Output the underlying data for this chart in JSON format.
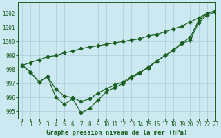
{
  "xlabel": "Graphe pression niveau de la mer (hPa)",
  "xlim": [
    -0.5,
    23
  ],
  "ylim": [
    994.5,
    1002.8
  ],
  "yticks": [
    995,
    996,
    997,
    998,
    999,
    1000,
    1001,
    1002
  ],
  "xticks": [
    0,
    1,
    2,
    3,
    4,
    5,
    6,
    7,
    8,
    9,
    10,
    11,
    12,
    13,
    14,
    15,
    16,
    17,
    18,
    19,
    20,
    21,
    22,
    23
  ],
  "bg_color": "#cce8f0",
  "grid_color": "#aaccd8",
  "line_color": "#1a6020",
  "line1_x": [
    0,
    1,
    2,
    3,
    4,
    5,
    6,
    7,
    8,
    9,
    10,
    11,
    12,
    13,
    14,
    15,
    16,
    17,
    18,
    19,
    20,
    21,
    22,
    23
  ],
  "line1_y": [
    998.3,
    998.5,
    998.7,
    998.9,
    999.0,
    999.2,
    999.3,
    999.5,
    999.6,
    999.7,
    999.8,
    999.9,
    1000.0,
    1000.1,
    1000.2,
    1000.4,
    1000.5,
    1000.7,
    1000.9,
    1001.1,
    1001.4,
    1001.7,
    1002.0,
    1002.2
  ],
  "line2_x": [
    0,
    1,
    2,
    3,
    4,
    5,
    6,
    7,
    8,
    9,
    10,
    11,
    12,
    13,
    14,
    15,
    16,
    17,
    18,
    19,
    20,
    21,
    22,
    23
  ],
  "line2_y": [
    998.3,
    997.8,
    997.1,
    997.5,
    996.6,
    996.1,
    996.0,
    995.7,
    995.9,
    996.3,
    996.6,
    996.9,
    997.1,
    997.5,
    997.8,
    998.1,
    998.6,
    999.0,
    999.4,
    999.9,
    1000.3,
    1001.5,
    1002.0,
    1002.2
  ],
  "line3_x": [
    0,
    1,
    2,
    3,
    4,
    5,
    6,
    7,
    8,
    9,
    10,
    11,
    12,
    13,
    14,
    15,
    16,
    17,
    18,
    19,
    20,
    21,
    22,
    23
  ],
  "line3_y": [
    998.3,
    997.8,
    997.1,
    997.5,
    996.0,
    995.5,
    995.9,
    994.9,
    995.2,
    995.8,
    996.4,
    996.7,
    997.0,
    997.4,
    997.75,
    998.2,
    998.6,
    999.0,
    999.35,
    999.85,
    1000.1,
    1001.35,
    1001.9,
    1002.1
  ],
  "marker_size": 2.5,
  "linewidth": 0.9,
  "xlabel_fontsize": 6.5,
  "tick_fontsize": 5.5
}
